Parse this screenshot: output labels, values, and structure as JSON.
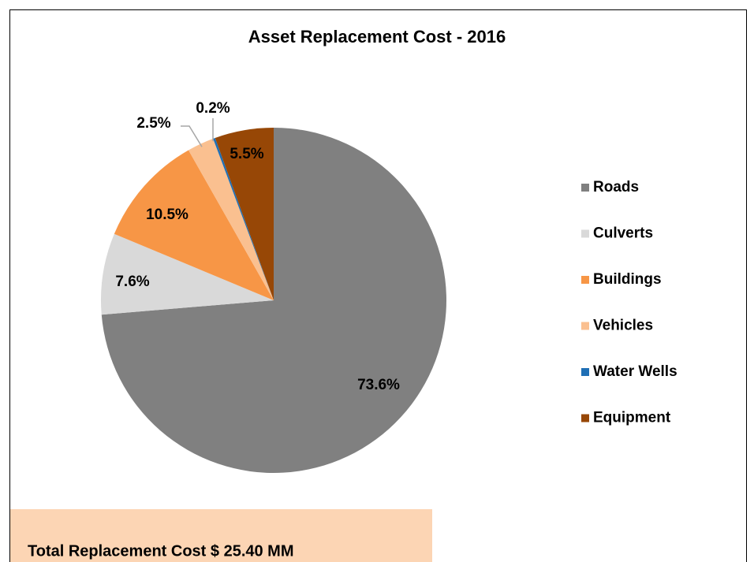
{
  "chart_data": {
    "type": "pie",
    "title": "Asset Replacement Cost - 2016",
    "categories": [
      "Roads",
      "Culverts",
      "Buildings",
      "Vehicles",
      "Water Wells",
      "Equipment"
    ],
    "values": [
      73.6,
      7.6,
      10.5,
      2.5,
      0.2,
      5.5
    ],
    "value_labels": [
      "73.6%",
      "7.6%",
      "10.5%",
      "2.5%",
      "0.2%",
      "5.5%"
    ],
    "colors": [
      "#808080",
      "#d9d9d9",
      "#f79646",
      "#fac090",
      "#1f6fb5",
      "#974706"
    ],
    "legend": "right",
    "annotation": "Total Replacement Cost $ 25.40 MM"
  }
}
